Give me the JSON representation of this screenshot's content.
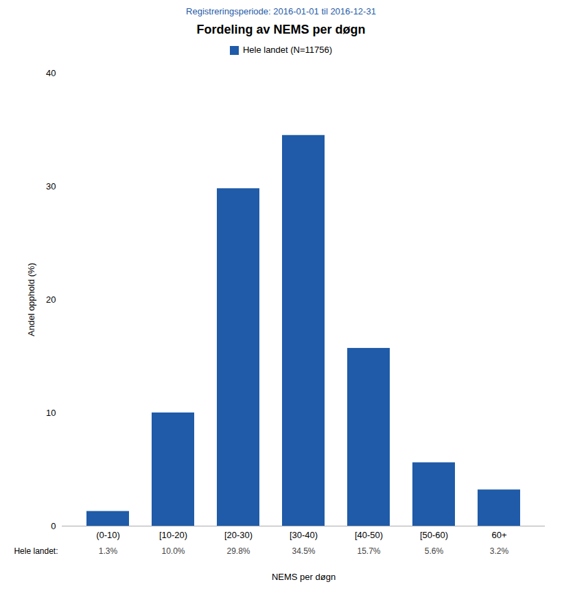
{
  "chart_data": {
    "type": "bar",
    "title": "Fordeling av NEMS per døgn",
    "subtitle": "Registreringsperiode: 2016-01-01 til 2016-12-31",
    "xlabel": "NEMS per døgn",
    "ylabel": "Andel opphold (%)",
    "categories": [
      "(0-10)",
      "[10-20)",
      "[20-30)",
      "[30-40)",
      "[40-50)",
      "[50-60)",
      "60+"
    ],
    "series": [
      {
        "name": "Hele landet (N=11756)",
        "color": "#1F5BA8",
        "values": [
          1.3,
          10.0,
          29.8,
          34.5,
          15.7,
          5.6,
          3.2
        ],
        "value_labels": [
          "1.3%",
          "10.0%",
          "29.8%",
          "34.5%",
          "15.7%",
          "5.6%",
          "3.2%"
        ]
      }
    ],
    "annotation": "Hele landet:",
    "data_labels": true,
    "legend": "top",
    "grid": false,
    "ylim": [
      0,
      40
    ],
    "yticks": [
      0,
      10,
      20,
      30,
      40
    ]
  }
}
